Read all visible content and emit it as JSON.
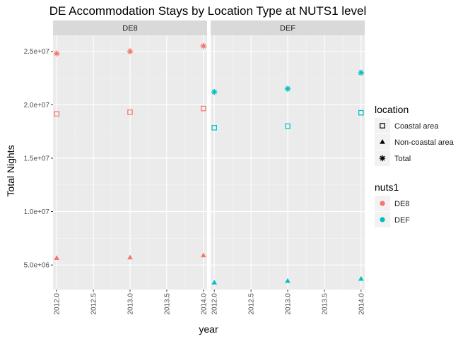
{
  "chart_data": {
    "type": "scatter",
    "title": "DE Accommodation Stays by Location Type at NUTS1 level",
    "xlabel": "year",
    "ylabel": "Total Nights",
    "xlim": [
      2011.95,
      2014.05
    ],
    "ylim": [
      2700000,
      26500000
    ],
    "x_ticks": [
      2012.0,
      2012.5,
      2013.0,
      2013.5,
      2014.0
    ],
    "x_tick_labels": [
      "2012.0",
      "2012.5",
      "2013.0",
      "2013.5",
      "2014.0"
    ],
    "y_ticks": [
      5000000,
      10000000,
      15000000,
      20000000,
      25000000
    ],
    "y_tick_labels": [
      "5.0e+06",
      "1.0e+07",
      "1.5e+07",
      "2.0e+07",
      "2.5e+07"
    ],
    "grid": true,
    "panels": [
      "DE8",
      "DEF"
    ],
    "colors": {
      "DE8": "#F8766D",
      "DEF": "#00BFC4"
    },
    "legend_position": "right",
    "legends": [
      {
        "title": "location",
        "entries": [
          {
            "label": "Coastal area",
            "shape": "square-open"
          },
          {
            "label": "Non-coastal area",
            "shape": "triangle"
          },
          {
            "label": "Total",
            "shape": "asterisk"
          }
        ]
      },
      {
        "title": "nuts1",
        "entries": [
          {
            "label": "DE8",
            "shape": "circle",
            "color": "#F8766D"
          },
          {
            "label": "DEF",
            "shape": "circle",
            "color": "#00BFC4"
          }
        ]
      }
    ],
    "series": [
      {
        "panel": "DE8",
        "location": "Coastal area",
        "shape": "square-open",
        "x": [
          2012,
          2013,
          2014
        ],
        "y": [
          19150000,
          19300000,
          19650000
        ]
      },
      {
        "panel": "DE8",
        "location": "Non-coastal area",
        "shape": "triangle",
        "x": [
          2012,
          2013,
          2014
        ],
        "y": [
          5650000,
          5700000,
          5900000
        ]
      },
      {
        "panel": "DE8",
        "location": "Total",
        "shape": "asterisk",
        "x": [
          2012,
          2013,
          2014
        ],
        "y": [
          24800000,
          25000000,
          25500000
        ]
      },
      {
        "panel": "DEF",
        "location": "Coastal area",
        "shape": "square-open",
        "x": [
          2012,
          2013,
          2014
        ],
        "y": [
          17850000,
          18000000,
          19250000
        ]
      },
      {
        "panel": "DEF",
        "location": "Non-coastal area",
        "shape": "triangle",
        "x": [
          2012,
          2013,
          2014
        ],
        "y": [
          3350000,
          3500000,
          3700000
        ]
      },
      {
        "panel": "DEF",
        "location": "Total",
        "shape": "asterisk",
        "x": [
          2012,
          2013,
          2014
        ],
        "y": [
          21200000,
          21500000,
          23000000
        ]
      }
    ]
  }
}
